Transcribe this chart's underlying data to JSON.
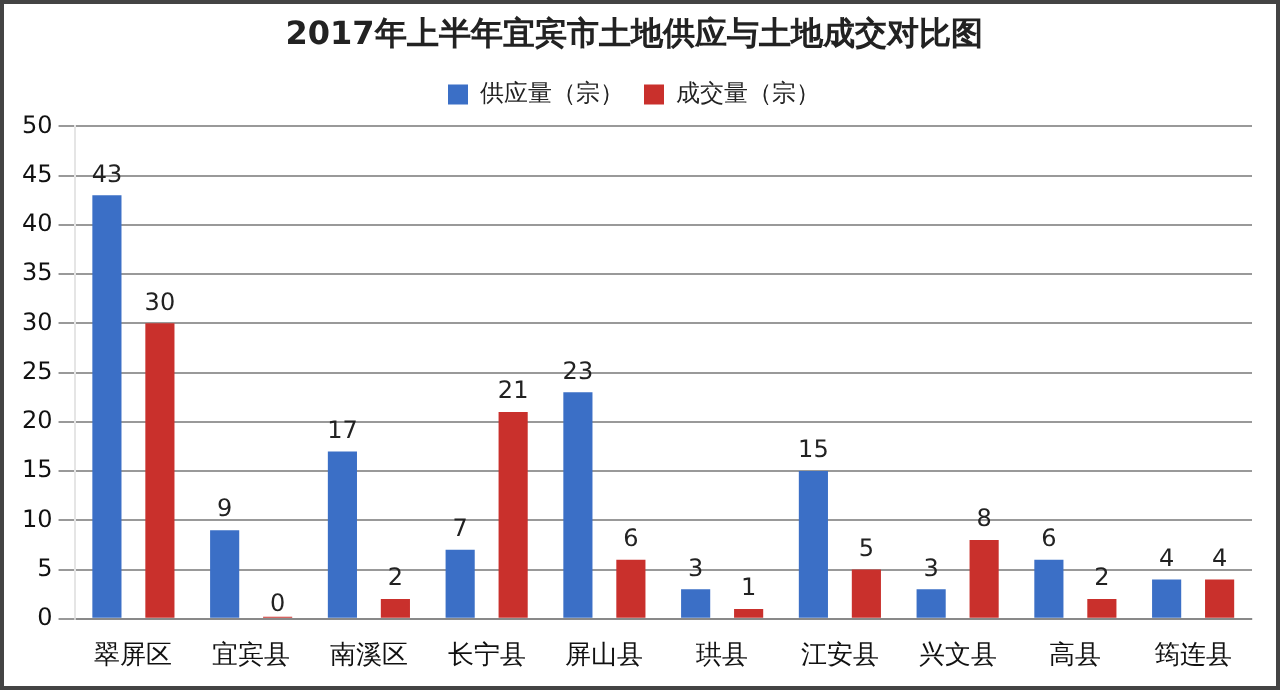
{
  "chart_data": {
    "type": "bar",
    "title": "2017年上半年宜宾市土地供应与土地成交对比图",
    "categories": [
      "翠屏区",
      "宜宾县",
      "南溪区",
      "长宁县",
      "屏山县",
      "珙县",
      "江安县",
      "兴文县",
      "高县",
      "筠连县"
    ],
    "series": [
      {
        "name": "供应量（宗）",
        "color": "#3b6fc6",
        "values": [
          43,
          9,
          17,
          7,
          23,
          3,
          15,
          3,
          6,
          4
        ]
      },
      {
        "name": "成交量（宗）",
        "color": "#c9302c",
        "values": [
          30,
          0,
          2,
          21,
          6,
          1,
          5,
          8,
          2,
          4
        ]
      }
    ],
    "ylim": [
      0,
      50
    ],
    "yticks": [
      0,
      5,
      10,
      15,
      20,
      25,
      30,
      35,
      40,
      45,
      50
    ],
    "grid": "y",
    "legend": "top",
    "data_labels": true
  }
}
